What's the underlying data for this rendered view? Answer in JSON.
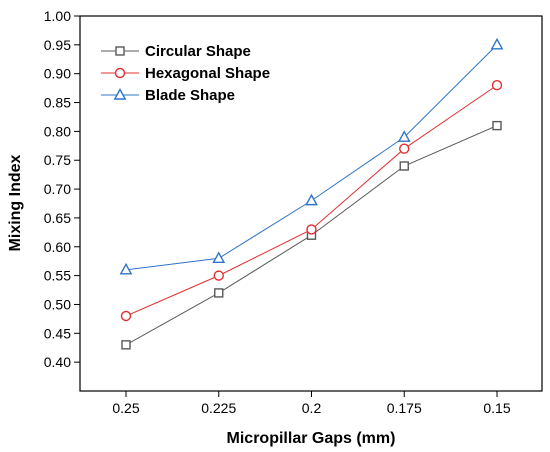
{
  "chart_data": {
    "type": "line",
    "title": "",
    "xlabel": "Micropillar Gaps (mm)",
    "ylabel": "Mixing Index",
    "categories": [
      "0.25",
      "0.225",
      "0.2",
      "0.175",
      "0.15"
    ],
    "ylim": [
      0.35,
      1.0
    ],
    "yticks": [
      "0.40",
      "0.45",
      "0.50",
      "0.55",
      "0.60",
      "0.65",
      "0.70",
      "0.75",
      "0.80",
      "0.85",
      "0.90",
      "0.95",
      "1.00"
    ],
    "legend_position": "top-left",
    "grid": false,
    "series": [
      {
        "name": "Circular Shape",
        "marker": "square",
        "color": "#595959",
        "values": [
          0.43,
          0.52,
          0.62,
          0.74,
          0.81
        ]
      },
      {
        "name": "Hexagonal Shape",
        "marker": "circle",
        "color": "#e03030",
        "values": [
          0.48,
          0.55,
          0.63,
          0.77,
          0.88
        ]
      },
      {
        "name": "Blade Shape",
        "marker": "triangle",
        "color": "#2f74c8",
        "values": [
          0.56,
          0.58,
          0.68,
          0.79,
          0.95
        ]
      }
    ]
  }
}
